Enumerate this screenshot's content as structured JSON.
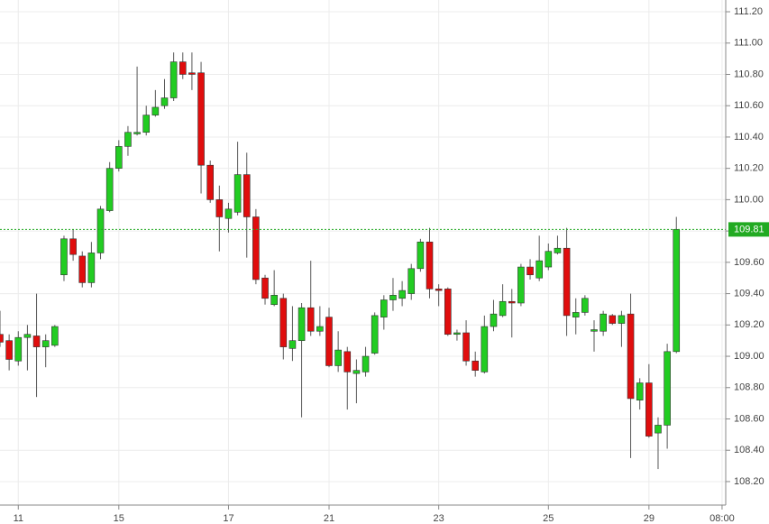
{
  "chart_data": {
    "type": "candlestick",
    "x": [
      0,
      1,
      2,
      3,
      4,
      5,
      6,
      7,
      8,
      9,
      10,
      11,
      12,
      13,
      14,
      15,
      16,
      17,
      18,
      19,
      20,
      21,
      22,
      23,
      24,
      25,
      26,
      27,
      28,
      29,
      30,
      31,
      32,
      33,
      34,
      35,
      36,
      37,
      38,
      39,
      40,
      41,
      42,
      43,
      44,
      45,
      46,
      47,
      48,
      49,
      50,
      51,
      52,
      53,
      54,
      55,
      56,
      57,
      58,
      59,
      60,
      61,
      62,
      63,
      64,
      65,
      66,
      67,
      68,
      69,
      70,
      71,
      72,
      73,
      74
    ],
    "open": [
      109.14,
      109.1,
      108.97,
      109.12,
      109.13,
      109.06,
      109.07,
      109.52,
      109.75,
      109.64,
      109.47,
      109.66,
      109.93,
      110.2,
      110.34,
      110.42,
      110.43,
      110.54,
      110.6,
      110.65,
      110.88,
      110.81,
      110.81,
      110.22,
      110.0,
      109.88,
      109.92,
      110.16,
      109.89,
      109.5,
      109.33,
      109.37,
      109.05,
      109.1,
      109.31,
      109.16,
      109.25,
      108.94,
      109.03,
      108.89,
      108.9,
      109.02,
      109.25,
      109.36,
      109.37,
      109.4,
      109.56,
      109.73,
      109.43,
      109.43,
      109.14,
      109.15,
      108.97,
      108.9,
      109.19,
      109.26,
      109.35,
      109.34,
      109.57,
      109.5,
      109.57,
      109.66,
      109.69,
      109.25,
      109.28,
      109.16,
      109.16,
      109.26,
      109.21,
      109.27,
      108.72,
      108.83,
      108.51,
      108.56,
      109.03
    ],
    "high": [
      109.29,
      109.14,
      109.16,
      109.2,
      109.4,
      109.14,
      109.2,
      109.77,
      109.81,
      109.67,
      109.73,
      109.96,
      110.24,
      110.38,
      110.47,
      110.85,
      110.6,
      110.7,
      110.77,
      110.94,
      110.94,
      110.94,
      110.88,
      110.25,
      110.09,
      109.98,
      110.37,
      110.3,
      109.94,
      109.52,
      109.55,
      109.4,
      109.32,
      109.34,
      109.61,
      109.32,
      109.31,
      109.16,
      109.06,
      108.98,
      109.06,
      109.28,
      109.39,
      109.5,
      109.48,
      109.59,
      109.75,
      109.82,
      109.46,
      109.44,
      109.17,
      109.23,
      109.03,
      109.26,
      109.36,
      109.46,
      109.43,
      109.59,
      109.62,
      109.77,
      109.72,
      109.77,
      109.82,
      109.37,
      109.39,
      109.23,
      109.29,
      109.27,
      109.29,
      109.4,
      108.86,
      108.95,
      108.61,
      109.08,
      109.89
    ],
    "low": [
      109.06,
      108.91,
      108.94,
      108.91,
      108.74,
      108.93,
      109.06,
      109.48,
      109.61,
      109.44,
      109.44,
      109.62,
      109.92,
      110.18,
      110.28,
      110.41,
      110.41,
      110.53,
      110.58,
      110.63,
      110.77,
      110.7,
      110.04,
      109.98,
      109.67,
      109.79,
      109.9,
      109.63,
      109.46,
      109.33,
      109.32,
      108.98,
      108.97,
      108.61,
      109.13,
      109.13,
      108.93,
      108.9,
      108.66,
      108.7,
      108.87,
      109.01,
      109.17,
      109.29,
      109.32,
      109.36,
      109.54,
      109.37,
      109.32,
      109.13,
      109.1,
      108.94,
      108.87,
      108.89,
      109.16,
      109.25,
      109.12,
      109.32,
      109.49,
      109.48,
      109.55,
      109.65,
      109.13,
      109.14,
      109.26,
      109.03,
      109.13,
      109.2,
      109.06,
      108.35,
      108.66,
      108.48,
      108.28,
      108.41,
      109.02
    ],
    "close": [
      109.09,
      108.98,
      109.12,
      109.14,
      109.06,
      109.1,
      109.19,
      109.75,
      109.65,
      109.47,
      109.66,
      109.94,
      110.2,
      110.34,
      110.43,
      110.43,
      110.54,
      110.59,
      110.65,
      110.88,
      110.8,
      110.8,
      110.22,
      110.0,
      109.89,
      109.94,
      110.16,
      109.89,
      109.49,
      109.37,
      109.39,
      109.06,
      109.1,
      109.31,
      109.16,
      109.19,
      108.94,
      109.04,
      108.9,
      108.91,
      109.0,
      109.26,
      109.36,
      109.39,
      109.42,
      109.56,
      109.73,
      109.43,
      109.42,
      109.14,
      109.15,
      108.97,
      108.91,
      109.19,
      109.27,
      109.35,
      109.34,
      109.57,
      109.52,
      109.61,
      109.67,
      109.69,
      109.26,
      109.28,
      109.37,
      109.17,
      109.27,
      109.21,
      109.26,
      108.73,
      108.83,
      108.49,
      108.56,
      109.03,
      109.81
    ],
    "up_color": "#22cc22",
    "down_color": "#e00d0d",
    "xlim": [
      0,
      79.4
    ],
    "ylim": [
      108.05,
      111.275
    ],
    "xticks": [
      {
        "value": 2,
        "label": "11"
      },
      {
        "value": 13,
        "label": "15"
      },
      {
        "value": 25,
        "label": "17"
      },
      {
        "value": 36,
        "label": "21"
      },
      {
        "value": 48,
        "label": "23"
      },
      {
        "value": 60,
        "label": "25"
      },
      {
        "value": 71,
        "label": "29"
      },
      {
        "value": 79,
        "label": "08:00"
      }
    ],
    "yticks": [
      {
        "value": 108.2,
        "label": "108.20"
      },
      {
        "value": 108.4,
        "label": "108.40"
      },
      {
        "value": 108.6,
        "label": "108.60"
      },
      {
        "value": 108.8,
        "label": "108.80"
      },
      {
        "value": 109.0,
        "label": "109.00"
      },
      {
        "value": 109.2,
        "label": "109.20"
      },
      {
        "value": 109.4,
        "label": "109.40"
      },
      {
        "value": 109.6,
        "label": "109.60"
      },
      {
        "value": 109.8,
        "label": "109.80"
      },
      {
        "value": 110.0,
        "label": "110.00"
      },
      {
        "value": 110.2,
        "label": "110.20"
      },
      {
        "value": 110.4,
        "label": "110.40"
      },
      {
        "value": 110.6,
        "label": "110.60"
      },
      {
        "value": 110.8,
        "label": "110.80"
      },
      {
        "value": 111.0,
        "label": "111.00"
      },
      {
        "value": 111.2,
        "label": "111.20"
      }
    ],
    "current_price": 109.81,
    "price_line_color": "#22aa22",
    "grid": true
  }
}
